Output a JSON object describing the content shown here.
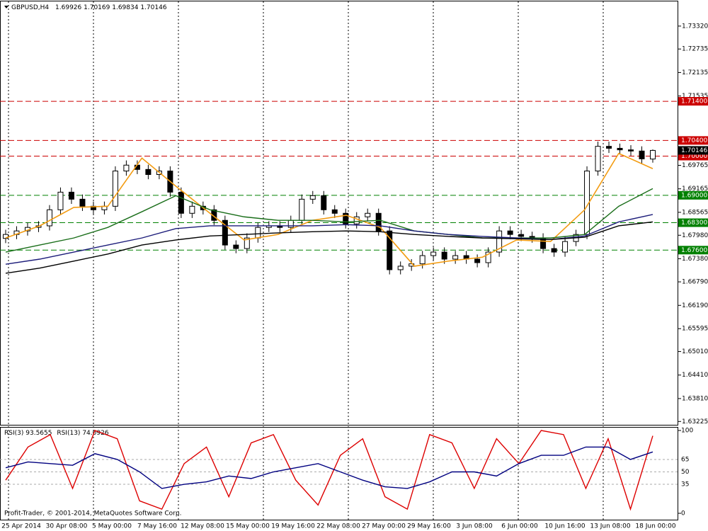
{
  "chart_data": [
    {
      "type": "candlestick",
      "title": "GBPUSD,H4",
      "open": [
        1.679,
        1.68,
        1.6809,
        1.6818,
        1.6822,
        1.6863,
        1.6908,
        1.689,
        1.6872,
        1.6863,
        1.6872,
        1.6962,
        1.6977,
        1.6966,
        1.6953,
        1.6962,
        1.6908,
        1.6854,
        1.6872,
        1.6863,
        1.6836,
        1.6773,
        1.6764,
        1.6791,
        1.6818,
        1.6822,
        1.6818,
        1.6836,
        1.689,
        1.6899,
        1.6863,
        1.6854,
        1.6827,
        1.6845,
        1.6854,
        1.6809,
        1.671,
        1.6719,
        1.6725,
        1.6746,
        1.6755,
        1.6737,
        1.6746,
        1.6737,
        1.6728,
        1.6755,
        1.6809,
        1.68,
        1.6795,
        1.6791,
        1.6764,
        1.6755,
        1.6782,
        1.68,
        1.6962,
        1.7025,
        1.702,
        1.7016,
        1.7013,
        1.69926
      ],
      "high": [
        1.6812,
        1.6821,
        1.683,
        1.6834,
        1.6875,
        1.692,
        1.692,
        1.6902,
        1.6884,
        1.6884,
        1.6974,
        1.6989,
        1.6989,
        1.6978,
        1.6974,
        1.6974,
        1.692,
        1.6884,
        1.6884,
        1.6875,
        1.6848,
        1.6785,
        1.6803,
        1.683,
        1.6834,
        1.6834,
        1.6848,
        1.6902,
        1.6911,
        1.6911,
        1.6875,
        1.6866,
        1.6857,
        1.6866,
        1.6866,
        1.6821,
        1.6731,
        1.6737,
        1.6758,
        1.6767,
        1.6767,
        1.6758,
        1.6758,
        1.6749,
        1.6767,
        1.6821,
        1.6821,
        1.6812,
        1.6807,
        1.6803,
        1.6776,
        1.6794,
        1.6812,
        1.6974,
        1.7037,
        1.7037,
        1.7032,
        1.7028,
        1.7025,
        1.70169
      ],
      "low": [
        1.6778,
        1.6788,
        1.6797,
        1.6806,
        1.681,
        1.6851,
        1.6878,
        1.686,
        1.6851,
        1.6851,
        1.686,
        1.695,
        1.6954,
        1.6941,
        1.6941,
        1.6896,
        1.6842,
        1.6842,
        1.6851,
        1.6824,
        1.6761,
        1.6752,
        1.6752,
        1.6779,
        1.6806,
        1.6806,
        1.6806,
        1.6824,
        1.6878,
        1.6851,
        1.6842,
        1.6815,
        1.6815,
        1.6833,
        1.6797,
        1.6698,
        1.6698,
        1.6707,
        1.6713,
        1.6734,
        1.6725,
        1.6725,
        1.6725,
        1.6716,
        1.6716,
        1.6743,
        1.6788,
        1.6783,
        1.6779,
        1.6752,
        1.6743,
        1.6743,
        1.677,
        1.6788,
        1.695,
        1.7008,
        1.7004,
        1.7001,
        1.6981,
        1.69834
      ],
      "close": [
        1.68,
        1.6809,
        1.6818,
        1.6822,
        1.6863,
        1.6908,
        1.689,
        1.6872,
        1.6863,
        1.6872,
        1.6962,
        1.6977,
        1.6966,
        1.6953,
        1.6962,
        1.6908,
        1.6854,
        1.6872,
        1.6863,
        1.6836,
        1.6773,
        1.6764,
        1.6791,
        1.6818,
        1.6822,
        1.6818,
        1.6836,
        1.689,
        1.6899,
        1.6863,
        1.6854,
        1.6827,
        1.6845,
        1.6854,
        1.6809,
        1.671,
        1.6719,
        1.6725,
        1.6746,
        1.6755,
        1.6737,
        1.6746,
        1.6737,
        1.6728,
        1.6755,
        1.6809,
        1.68,
        1.6795,
        1.6791,
        1.6764,
        1.6755,
        1.6782,
        1.68,
        1.6962,
        1.7025,
        1.702,
        1.7016,
        1.7013,
        1.6993,
        1.70146
      ],
      "up_color": "#ffffff",
      "down_color": "#000000",
      "series": [
        {
          "color": "#f39c12",
          "values": [
            1.6791,
            1.6822,
            1.6869,
            1.6872,
            1.6995,
            1.6923,
            1.6854,
            1.6786,
            1.68,
            1.6836,
            1.6849,
            1.6818,
            1.6719,
            1.6732,
            1.6742,
            1.6786,
            1.6782,
            1.6863,
            1.7007,
            1.6968
          ]
        },
        {
          "color": "#1a6e1a",
          "values": [
            1.6755,
            1.6773,
            1.6791,
            1.6818,
            1.6858,
            1.6899,
            1.6863,
            1.6845,
            1.6836,
            1.6836,
            1.6832,
            1.6836,
            1.6809,
            1.68,
            1.6791,
            1.6791,
            1.6791,
            1.68,
            1.6872,
            1.6917
          ]
        },
        {
          "color": "#1c1c7a",
          "values": [
            1.6724,
            1.6737,
            1.6755,
            1.6773,
            1.6791,
            1.6815,
            1.6822,
            1.6822,
            1.6822,
            1.6822,
            1.6825,
            1.6822,
            1.6809,
            1.68,
            1.6795,
            1.6791,
            1.6787,
            1.6796,
            1.6832,
            1.6851
          ]
        },
        {
          "color": "#000000",
          "values": [
            1.6701,
            1.6714,
            1.6732,
            1.675,
            1.6773,
            1.6786,
            1.6796,
            1.68,
            1.6804,
            1.6807,
            1.6809,
            1.6807,
            1.68,
            1.6795,
            1.6791,
            1.6789,
            1.6787,
            1.6793,
            1.6822,
            1.6832
          ]
        }
      ],
      "ylim": [
        1.6314,
        1.7395
      ],
      "yticks": [
        {
          "value": 1.7332,
          "label": "1.73320"
        },
        {
          "value": 1.72735,
          "label": "1.72735"
        },
        {
          "value": 1.72135,
          "label": "1.72135"
        },
        {
          "value": 1.71535,
          "label": "1.71535"
        },
        {
          "value": 1.69765,
          "label": "1.69765"
        },
        {
          "value": 1.69165,
          "label": "1.69165"
        },
        {
          "value": 1.68565,
          "label": "1.68565"
        },
        {
          "value": 1.6798,
          "label": "1.67980"
        },
        {
          "value": 1.6738,
          "label": "1.67380"
        },
        {
          "value": 1.6679,
          "label": "1.66790"
        },
        {
          "value": 1.6619,
          "label": "1.66190"
        },
        {
          "value": 1.65595,
          "label": "1.65595"
        },
        {
          "value": 1.6501,
          "label": "1.65010"
        },
        {
          "value": 1.6441,
          "label": "1.64410"
        },
        {
          "value": 1.6381,
          "label": "1.63810"
        },
        {
          "value": 1.63225,
          "label": "1.63225"
        }
      ],
      "levels": [
        {
          "value": 1.714,
          "label": "1.71400",
          "color": "#cc0000"
        },
        {
          "value": 1.704,
          "label": "1.70400",
          "color": "#cc0000"
        },
        {
          "value": 1.7,
          "label": "1.70000",
          "color": "#cc0000"
        },
        {
          "value": 1.69,
          "label": "1.69000",
          "color": "#008000"
        },
        {
          "value": 1.683,
          "label": "1.68300",
          "color": "#008000"
        },
        {
          "value": 1.676,
          "label": "1.67600",
          "color": "#008000"
        }
      ],
      "xlabels": [
        "25 Apr 2014",
        "30 Apr 08:00",
        "5 May 00:00",
        "7 May 16:00",
        "12 May 08:00",
        "15 May 00:00",
        "19 May 16:00",
        "22 May 08:00",
        "27 May 00:00",
        "29 May 16:00",
        "3 Jun 08:00",
        "6 Jun 00:00",
        "10 Jun 16:00",
        "13 Jun 08:00",
        "18 Jun 00:00"
      ]
    },
    {
      "type": "line",
      "series": [
        {
          "name": "RSI(3)",
          "color": "#dd0000",
          "values": [
            40,
            80,
            95,
            30,
            100,
            90,
            15,
            5,
            60,
            80,
            20,
            85,
            95,
            40,
            10,
            70,
            90,
            20,
            5,
            95,
            85,
            30,
            90,
            60,
            100,
            95,
            30,
            90,
            5,
            93.5655
          ]
        },
        {
          "name": "RSI(13)",
          "color": "#000080",
          "values": [
            55,
            62,
            60,
            58,
            72,
            65,
            50,
            30,
            35,
            38,
            45,
            42,
            50,
            55,
            60,
            50,
            40,
            32,
            30,
            38,
            50,
            50,
            45,
            60,
            70,
            70,
            80,
            80,
            65,
            74.0926
          ]
        }
      ],
      "ylim": [
        0,
        100
      ],
      "yticks": [
        100,
        65,
        50,
        35,
        0
      ]
    }
  ],
  "footer": "Profit-Trader, © 2001-2014, MetaQuotes Software Corp."
}
